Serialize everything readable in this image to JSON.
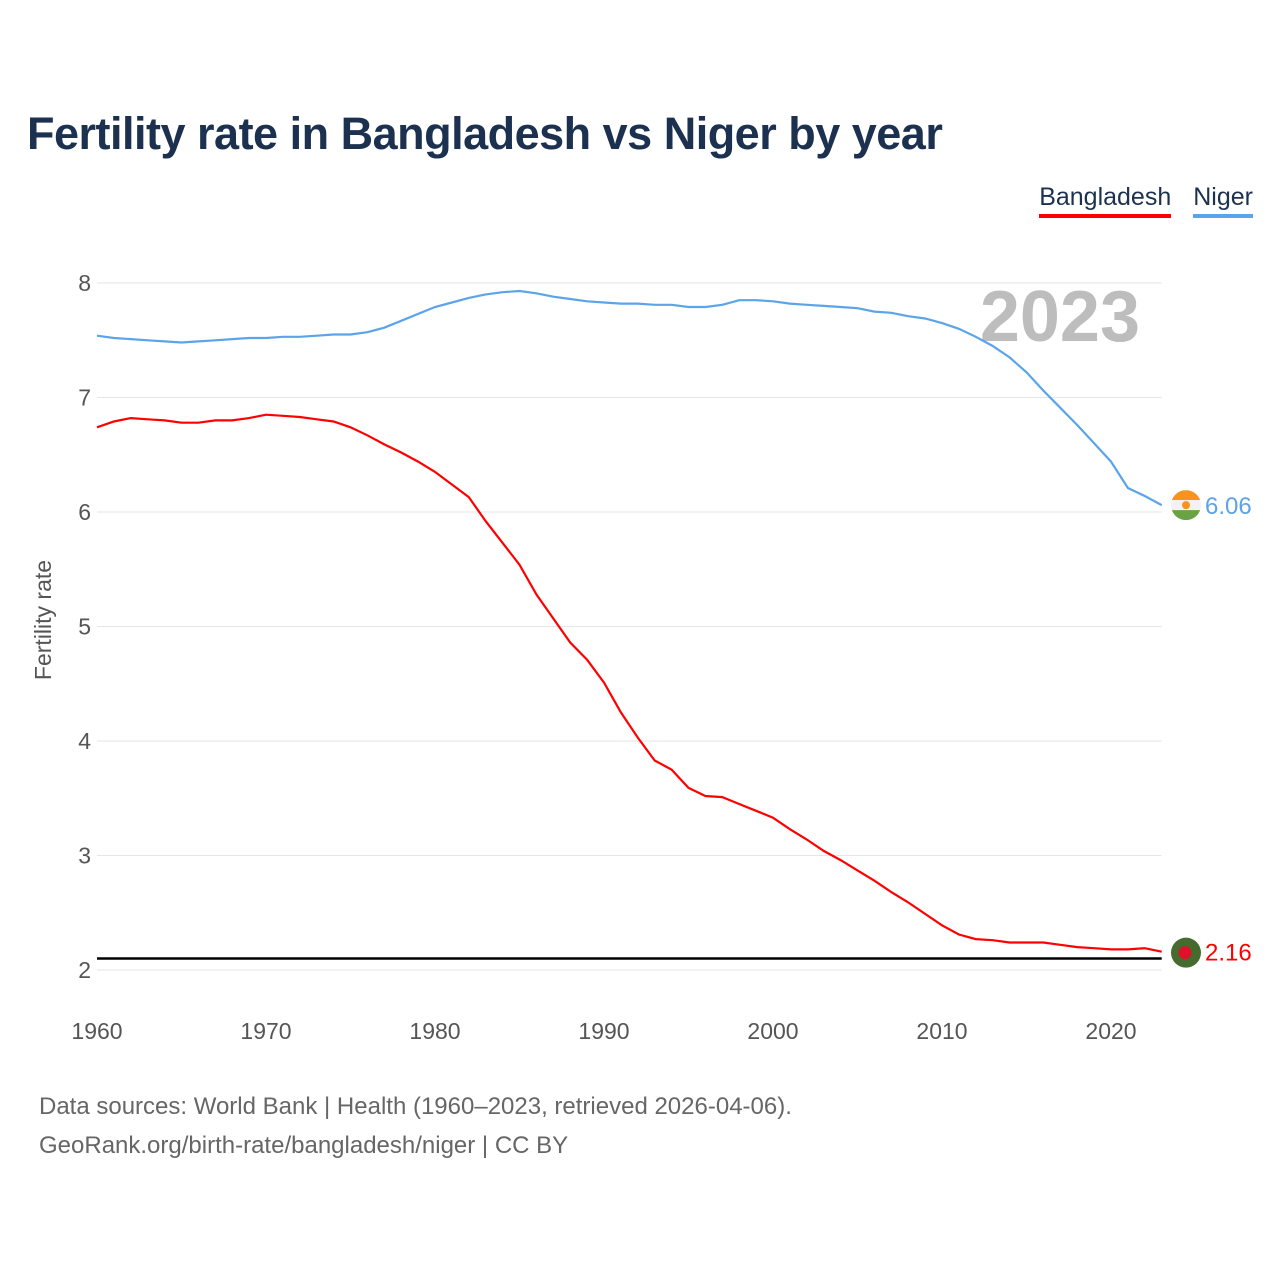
{
  "chart_data": {
    "type": "line",
    "title": "Fertility rate in Bangladesh vs Niger by year",
    "xlabel": "",
    "ylabel": "Fertility rate",
    "xlim": [
      1960,
      2023
    ],
    "ylim": [
      2,
      8
    ],
    "xticks": [
      "1960",
      "1970",
      "1980",
      "1990",
      "2000",
      "2010",
      "2020"
    ],
    "yticks": [
      "2",
      "3",
      "4",
      "5",
      "6",
      "7",
      "8"
    ],
    "grid": true,
    "year_label": "2023",
    "reference_line": 2.1,
    "legend": {
      "placement": "top-right",
      "entries": [
        "Bangladesh",
        "Niger"
      ]
    },
    "series": [
      {
        "name": "Bangladesh",
        "color": "#ff0000",
        "end_label": "2.16",
        "points": [
          [
            1960,
            6.74
          ],
          [
            1961,
            6.79
          ],
          [
            1962,
            6.82
          ],
          [
            1963,
            6.81
          ],
          [
            1964,
            6.8
          ],
          [
            1965,
            6.78
          ],
          [
            1966,
            6.78
          ],
          [
            1967,
            6.8
          ],
          [
            1968,
            6.8
          ],
          [
            1969,
            6.82
          ],
          [
            1970,
            6.85
          ],
          [
            1971,
            6.84
          ],
          [
            1972,
            6.83
          ],
          [
            1973,
            6.81
          ],
          [
            1974,
            6.79
          ],
          [
            1975,
            6.74
          ],
          [
            1976,
            6.67
          ],
          [
            1977,
            6.59
          ],
          [
            1978,
            6.52
          ],
          [
            1979,
            6.44
          ],
          [
            1980,
            6.35
          ],
          [
            1981,
            6.24
          ],
          [
            1982,
            6.13
          ],
          [
            1983,
            5.92
          ],
          [
            1984,
            5.73
          ],
          [
            1985,
            5.54
          ],
          [
            1986,
            5.28
          ],
          [
            1987,
            5.07
          ],
          [
            1988,
            4.86
          ],
          [
            1989,
            4.71
          ],
          [
            1990,
            4.51
          ],
          [
            1991,
            4.25
          ],
          [
            1992,
            4.03
          ],
          [
            1993,
            3.83
          ],
          [
            1994,
            3.75
          ],
          [
            1995,
            3.59
          ],
          [
            1996,
            3.52
          ],
          [
            1997,
            3.51
          ],
          [
            1998,
            3.45
          ],
          [
            1999,
            3.39
          ],
          [
            2000,
            3.33
          ],
          [
            2001,
            3.23
          ],
          [
            2002,
            3.14
          ],
          [
            2003,
            3.04
          ],
          [
            2004,
            2.96
          ],
          [
            2005,
            2.87
          ],
          [
            2006,
            2.78
          ],
          [
            2007,
            2.68
          ],
          [
            2008,
            2.59
          ],
          [
            2009,
            2.49
          ],
          [
            2010,
            2.39
          ],
          [
            2011,
            2.31
          ],
          [
            2012,
            2.27
          ],
          [
            2013,
            2.26
          ],
          [
            2014,
            2.24
          ],
          [
            2015,
            2.24
          ],
          [
            2016,
            2.24
          ],
          [
            2017,
            2.22
          ],
          [
            2018,
            2.2
          ],
          [
            2019,
            2.19
          ],
          [
            2020,
            2.18
          ],
          [
            2021,
            2.18
          ],
          [
            2022,
            2.19
          ],
          [
            2023,
            2.16
          ]
        ]
      },
      {
        "name": "Niger",
        "color": "#5ba4ea",
        "end_label": "6.06",
        "points": [
          [
            1960,
            7.54
          ],
          [
            1961,
            7.52
          ],
          [
            1962,
            7.51
          ],
          [
            1963,
            7.5
          ],
          [
            1964,
            7.49
          ],
          [
            1965,
            7.48
          ],
          [
            1966,
            7.49
          ],
          [
            1967,
            7.5
          ],
          [
            1968,
            7.51
          ],
          [
            1969,
            7.52
          ],
          [
            1970,
            7.52
          ],
          [
            1971,
            7.53
          ],
          [
            1972,
            7.53
          ],
          [
            1973,
            7.54
          ],
          [
            1974,
            7.55
          ],
          [
            1975,
            7.55
          ],
          [
            1976,
            7.57
          ],
          [
            1977,
            7.61
          ],
          [
            1978,
            7.67
          ],
          [
            1979,
            7.73
          ],
          [
            1980,
            7.79
          ],
          [
            1981,
            7.83
          ],
          [
            1982,
            7.87
          ],
          [
            1983,
            7.9
          ],
          [
            1984,
            7.92
          ],
          [
            1985,
            7.93
          ],
          [
            1986,
            7.91
          ],
          [
            1987,
            7.88
          ],
          [
            1988,
            7.86
          ],
          [
            1989,
            7.84
          ],
          [
            1990,
            7.83
          ],
          [
            1991,
            7.82
          ],
          [
            1992,
            7.82
          ],
          [
            1993,
            7.81
          ],
          [
            1994,
            7.81
          ],
          [
            1995,
            7.79
          ],
          [
            1996,
            7.79
          ],
          [
            1997,
            7.81
          ],
          [
            1998,
            7.85
          ],
          [
            1999,
            7.85
          ],
          [
            2000,
            7.84
          ],
          [
            2001,
            7.82
          ],
          [
            2002,
            7.81
          ],
          [
            2003,
            7.8
          ],
          [
            2004,
            7.79
          ],
          [
            2005,
            7.78
          ],
          [
            2006,
            7.75
          ],
          [
            2007,
            7.74
          ],
          [
            2008,
            7.71
          ],
          [
            2009,
            7.69
          ],
          [
            2010,
            7.65
          ],
          [
            2011,
            7.6
          ],
          [
            2012,
            7.53
          ],
          [
            2013,
            7.45
          ],
          [
            2014,
            7.35
          ],
          [
            2015,
            7.22
          ],
          [
            2016,
            7.06
          ],
          [
            2017,
            6.91
          ],
          [
            2018,
            6.76
          ],
          [
            2019,
            6.6
          ],
          [
            2020,
            6.44
          ],
          [
            2021,
            6.21
          ],
          [
            2022,
            6.14
          ],
          [
            2023,
            6.06
          ]
        ]
      }
    ]
  },
  "footer": {
    "line1": "Data sources: World Bank | Health (1960–2023, retrieved 2026-04-06).",
    "line2": "GeoRank.org/birth-rate/bangladesh/niger | CC BY"
  }
}
